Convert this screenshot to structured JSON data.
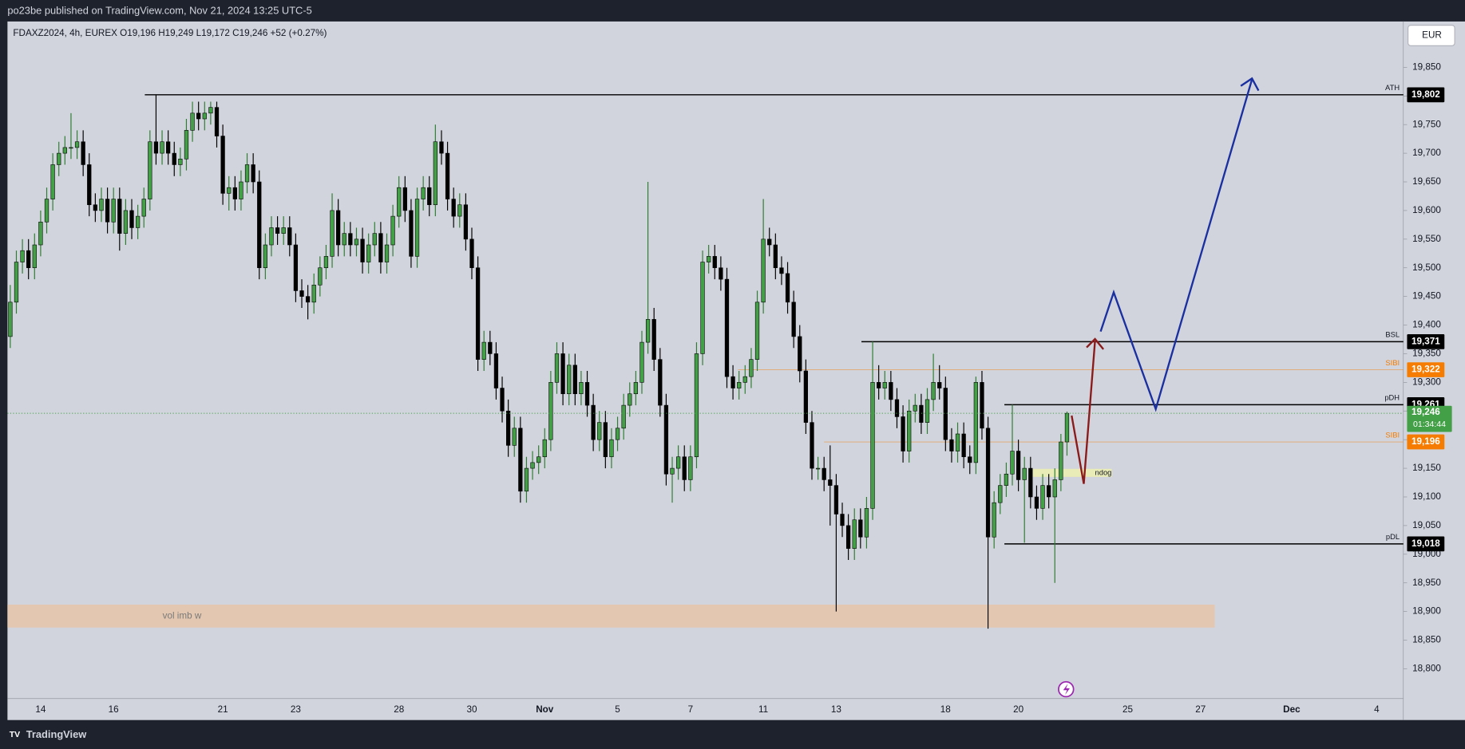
{
  "publisher": "po23be published on TradingView.com, Nov 21, 2024 13:25 UTC-5",
  "brand": "TradingView",
  "currency": "EUR",
  "chart_data": {
    "type": "candlestick",
    "title": "FDAXZ2024, 4h, EUREX  O19,196  H19,249  L19,172  C19,246  +52 (+0.27%)",
    "up_color": "#43a047",
    "down_color": "#000000",
    "ylim": [
      18748,
      19930
    ],
    "yticks": [
      {
        "value": 18800,
        "label": "18,800"
      },
      {
        "value": 18850,
        "label": "18,850"
      },
      {
        "value": 18900,
        "label": "18,900"
      },
      {
        "value": 18950,
        "label": "18,950"
      },
      {
        "value": 19000,
        "label": "19,000"
      },
      {
        "value": 19050,
        "label": "19,050"
      },
      {
        "value": 19100,
        "label": "19,100"
      },
      {
        "value": 19150,
        "label": "19,150"
      },
      {
        "value": 19200,
        "label": "19,200"
      },
      {
        "value": 19250,
        "label": "19,250"
      },
      {
        "value": 19300,
        "label": "19,300"
      },
      {
        "value": 19350,
        "label": "19,350"
      },
      {
        "value": 19400,
        "label": "19,400"
      },
      {
        "value": 19450,
        "label": "19,450"
      },
      {
        "value": 19500,
        "label": "19,500"
      },
      {
        "value": 19550,
        "label": "19,550"
      },
      {
        "value": 19600,
        "label": "19,600"
      },
      {
        "value": 19650,
        "label": "19,650"
      },
      {
        "value": 19700,
        "label": "19,700"
      },
      {
        "value": 19750,
        "label": "19,750"
      },
      {
        "value": 19800,
        "label": "19,800"
      },
      {
        "value": 19850,
        "label": "19,850"
      }
    ],
    "categories": [
      null,
      null,
      null,
      null,
      null,
      "14",
      null,
      null,
      null,
      null,
      null,
      null,
      null,
      null,
      null,
      null,
      null,
      "16",
      null,
      null,
      null,
      null,
      null,
      null,
      null,
      null,
      null,
      null,
      null,
      null,
      null,
      null,
      null,
      null,
      null,
      "21",
      null,
      null,
      null,
      null,
      null,
      null,
      null,
      null,
      null,
      null,
      null,
      "23",
      null,
      null,
      null,
      null,
      null,
      null,
      null,
      null,
      null,
      null,
      null,
      null,
      null,
      null,
      null,
      null,
      "28",
      null,
      null,
      null,
      null,
      null,
      null,
      null,
      null,
      null,
      null,
      null,
      "30",
      null,
      null,
      null,
      null,
      null,
      null,
      null,
      null,
      null,
      null,
      null,
      "Nov",
      null,
      null,
      null,
      null,
      null,
      null,
      null,
      null,
      null,
      null,
      null,
      "5",
      null,
      null,
      null,
      null,
      null,
      null,
      null,
      null,
      null,
      null,
      null,
      "7",
      null,
      null,
      null,
      null,
      null,
      null,
      null,
      null,
      null,
      null,
      null,
      "11",
      null,
      null,
      null,
      null,
      null,
      null,
      null,
      null,
      null,
      null,
      null,
      "13",
      null,
      null,
      null,
      null,
      null,
      null,
      null,
      null,
      null,
      null,
      null,
      null,
      null,
      null,
      null,
      null,
      null,
      "18",
      null,
      null,
      null,
      null,
      null,
      null,
      null,
      null,
      null,
      null,
      null,
      "20",
      null,
      null,
      null,
      null,
      null,
      null,
      null,
      null,
      null,
      null,
      null,
      null,
      null,
      null,
      null,
      null,
      null,
      "25",
      null,
      null,
      null,
      null,
      null,
      null,
      null,
      null,
      null,
      null,
      null,
      "27",
      null,
      null,
      null,
      null,
      null,
      null,
      null,
      null,
      null,
      null,
      null,
      null,
      null,
      null,
      "Dec",
      null,
      null,
      null,
      null,
      null,
      null,
      null,
      null,
      null,
      null,
      null,
      null,
      null,
      "4",
      null,
      null,
      null,
      null
    ],
    "ohlc": [
      [
        19380,
        19470,
        19360,
        19440
      ],
      [
        19440,
        19530,
        19420,
        19510
      ],
      [
        19510,
        19550,
        19490,
        19530
      ],
      [
        19530,
        19550,
        19480,
        19500
      ],
      [
        19500,
        19560,
        19480,
        19540
      ],
      [
        19540,
        19600,
        19520,
        19580
      ],
      [
        19580,
        19640,
        19560,
        19620
      ],
      [
        19620,
        19700,
        19600,
        19680
      ],
      [
        19680,
        19720,
        19660,
        19700
      ],
      [
        19700,
        19730,
        19680,
        19710
      ],
      [
        19710,
        19770,
        19690,
        19710
      ],
      [
        19710,
        19740,
        19690,
        19720
      ],
      [
        19720,
        19740,
        19660,
        19680
      ],
      [
        19680,
        19700,
        19590,
        19610
      ],
      [
        19610,
        19630,
        19580,
        19600
      ],
      [
        19600,
        19640,
        19580,
        19620
      ],
      [
        19620,
        19640,
        19560,
        19580
      ],
      [
        19580,
        19640,
        19560,
        19620
      ],
      [
        19620,
        19640,
        19530,
        19560
      ],
      [
        19560,
        19620,
        19540,
        19600
      ],
      [
        19600,
        19620,
        19550,
        19570
      ],
      [
        19570,
        19610,
        19550,
        19590
      ],
      [
        19590,
        19640,
        19570,
        19620
      ],
      [
        19620,
        19740,
        19600,
        19720
      ],
      [
        19720,
        19802,
        19680,
        19700
      ],
      [
        19700,
        19740,
        19680,
        19720
      ],
      [
        19720,
        19740,
        19680,
        19700
      ],
      [
        19700,
        19720,
        19660,
        19680
      ],
      [
        19680,
        19710,
        19660,
        19690
      ],
      [
        19690,
        19760,
        19670,
        19740
      ],
      [
        19740,
        19790,
        19720,
        19770
      ],
      [
        19770,
        19790,
        19740,
        19760
      ],
      [
        19760,
        19790,
        19740,
        19770
      ],
      [
        19770,
        19790,
        19750,
        19780
      ],
      [
        19780,
        19790,
        19710,
        19730
      ],
      [
        19730,
        19750,
        19610,
        19630
      ],
      [
        19630,
        19660,
        19600,
        19640
      ],
      [
        19640,
        19660,
        19600,
        19620
      ],
      [
        19620,
        19670,
        19600,
        19650
      ],
      [
        19650,
        19700,
        19630,
        19680
      ],
      [
        19680,
        19700,
        19630,
        19650
      ],
      [
        19650,
        19670,
        19480,
        19500
      ],
      [
        19500,
        19560,
        19480,
        19540
      ],
      [
        19540,
        19590,
        19520,
        19570
      ],
      [
        19570,
        19590,
        19540,
        19560
      ],
      [
        19560,
        19590,
        19540,
        19570
      ],
      [
        19570,
        19590,
        19520,
        19540
      ],
      [
        19540,
        19560,
        19440,
        19460
      ],
      [
        19460,
        19480,
        19430,
        19450
      ],
      [
        19450,
        19470,
        19410,
        19440
      ],
      [
        19440,
        19490,
        19420,
        19470
      ],
      [
        19470,
        19520,
        19450,
        19500
      ],
      [
        19500,
        19540,
        19480,
        19520
      ],
      [
        19520,
        19630,
        19500,
        19600
      ],
      [
        19600,
        19620,
        19520,
        19540
      ],
      [
        19540,
        19580,
        19520,
        19560
      ],
      [
        19560,
        19580,
        19520,
        19540
      ],
      [
        19540,
        19570,
        19520,
        19550
      ],
      [
        19550,
        19570,
        19490,
        19510
      ],
      [
        19510,
        19560,
        19490,
        19540
      ],
      [
        19540,
        19580,
        19520,
        19560
      ],
      [
        19560,
        19580,
        19490,
        19510
      ],
      [
        19510,
        19560,
        19490,
        19540
      ],
      [
        19540,
        19610,
        19520,
        19590
      ],
      [
        19590,
        19660,
        19570,
        19640
      ],
      [
        19640,
        19660,
        19580,
        19600
      ],
      [
        19600,
        19620,
        19500,
        19520
      ],
      [
        19520,
        19640,
        19500,
        19620
      ],
      [
        19620,
        19660,
        19600,
        19640
      ],
      [
        19640,
        19660,
        19590,
        19610
      ],
      [
        19610,
        19750,
        19590,
        19720
      ],
      [
        19720,
        19740,
        19680,
        19700
      ],
      [
        19700,
        19720,
        19600,
        19620
      ],
      [
        19620,
        19640,
        19570,
        19590
      ],
      [
        19590,
        19630,
        19570,
        19610
      ],
      [
        19610,
        19630,
        19530,
        19550
      ],
      [
        19550,
        19570,
        19480,
        19500
      ],
      [
        19500,
        19520,
        19320,
        19340
      ],
      [
        19340,
        19390,
        19320,
        19370
      ],
      [
        19370,
        19390,
        19330,
        19350
      ],
      [
        19350,
        19370,
        19270,
        19290
      ],
      [
        19290,
        19310,
        19230,
        19250
      ],
      [
        19250,
        19270,
        19170,
        19190
      ],
      [
        19190,
        19240,
        19170,
        19220
      ],
      [
        19220,
        19240,
        19090,
        19110
      ],
      [
        19110,
        19170,
        19090,
        19150
      ],
      [
        19150,
        19180,
        19130,
        19160
      ],
      [
        19160,
        19190,
        19140,
        19170
      ],
      [
        19170,
        19220,
        19150,
        19200
      ],
      [
        19200,
        19320,
        19180,
        19300
      ],
      [
        19300,
        19370,
        19280,
        19350
      ],
      [
        19350,
        19370,
        19260,
        19280
      ],
      [
        19280,
        19350,
        19260,
        19330
      ],
      [
        19330,
        19350,
        19260,
        19280
      ],
      [
        19280,
        19320,
        19260,
        19300
      ],
      [
        19300,
        19320,
        19240,
        19260
      ],
      [
        19260,
        19280,
        19180,
        19200
      ],
      [
        19200,
        19250,
        19180,
        19230
      ],
      [
        19230,
        19250,
        19150,
        19170
      ],
      [
        19170,
        19220,
        19150,
        19200
      ],
      [
        19200,
        19240,
        19180,
        19220
      ],
      [
        19220,
        19280,
        19200,
        19260
      ],
      [
        19260,
        19300,
        19240,
        19280
      ],
      [
        19280,
        19320,
        19260,
        19300
      ],
      [
        19300,
        19390,
        19280,
        19370
      ],
      [
        19370,
        19650,
        19350,
        19410
      ],
      [
        19410,
        19430,
        19320,
        19340
      ],
      [
        19340,
        19360,
        19240,
        19260
      ],
      [
        19260,
        19280,
        19120,
        19140
      ],
      [
        19140,
        19170,
        19090,
        19150
      ],
      [
        19150,
        19190,
        19130,
        19170
      ],
      [
        19170,
        19190,
        19110,
        19130
      ],
      [
        19130,
        19190,
        19110,
        19170
      ],
      [
        19170,
        19370,
        19150,
        19350
      ],
      [
        19350,
        19530,
        19330,
        19510
      ],
      [
        19510,
        19540,
        19490,
        19520
      ],
      [
        19520,
        19540,
        19480,
        19500
      ],
      [
        19500,
        19520,
        19460,
        19480
      ],
      [
        19480,
        19500,
        19290,
        19310
      ],
      [
        19310,
        19330,
        19270,
        19290
      ],
      [
        19290,
        19320,
        19270,
        19300
      ],
      [
        19300,
        19330,
        19280,
        19310
      ],
      [
        19310,
        19360,
        19290,
        19340
      ],
      [
        19340,
        19460,
        19320,
        19440
      ],
      [
        19440,
        19620,
        19420,
        19550
      ],
      [
        19550,
        19570,
        19520,
        19540
      ],
      [
        19540,
        19560,
        19480,
        19500
      ],
      [
        19500,
        19520,
        19470,
        19490
      ],
      [
        19490,
        19510,
        19420,
        19440
      ],
      [
        19440,
        19460,
        19360,
        19380
      ],
      [
        19380,
        19400,
        19300,
        19320
      ],
      [
        19320,
        19340,
        19210,
        19230
      ],
      [
        19230,
        19250,
        19130,
        19150
      ],
      [
        19150,
        19170,
        19130,
        19150
      ],
      [
        19150,
        19170,
        19110,
        19130
      ],
      [
        19130,
        19190,
        19050,
        19120
      ],
      [
        19120,
        19140,
        18900,
        19070
      ],
      [
        19070,
        19090,
        19030,
        19050
      ],
      [
        19050,
        19070,
        18990,
        19010
      ],
      [
        19010,
        19080,
        18990,
        19060
      ],
      [
        19060,
        19080,
        19010,
        19030
      ],
      [
        19030,
        19100,
        19010,
        19080
      ],
      [
        19080,
        19371,
        19060,
        19300
      ],
      [
        19300,
        19330,
        19270,
        19290
      ],
      [
        19290,
        19320,
        19270,
        19300
      ],
      [
        19300,
        19320,
        19250,
        19270
      ],
      [
        19270,
        19290,
        19220,
        19240
      ],
      [
        19240,
        19260,
        19160,
        19180
      ],
      [
        19180,
        19270,
        19160,
        19250
      ],
      [
        19250,
        19280,
        19230,
        19260
      ],
      [
        19260,
        19280,
        19210,
        19230
      ],
      [
        19230,
        19290,
        19210,
        19270
      ],
      [
        19270,
        19350,
        19250,
        19300
      ],
      [
        19300,
        19330,
        19270,
        19290
      ],
      [
        19290,
        19310,
        19180,
        19200
      ],
      [
        19200,
        19220,
        19160,
        19180
      ],
      [
        19180,
        19230,
        19160,
        19210
      ],
      [
        19210,
        19230,
        19150,
        19170
      ],
      [
        19170,
        19190,
        19140,
        19160
      ],
      [
        19160,
        19310,
        19140,
        19300
      ],
      [
        19300,
        19320,
        19200,
        19220
      ],
      [
        19220,
        19240,
        18870,
        19030
      ],
      [
        19030,
        19110,
        19010,
        19090
      ],
      [
        19090,
        19140,
        19070,
        19120
      ],
      [
        19120,
        19160,
        19100,
        19140
      ],
      [
        19140,
        19261,
        19120,
        19180
      ],
      [
        19180,
        19200,
        19110,
        19130
      ],
      [
        19130,
        19170,
        19020,
        19150
      ],
      [
        19150,
        19170,
        19080,
        19100
      ],
      [
        19100,
        19120,
        19060,
        19080
      ],
      [
        19080,
        19140,
        19060,
        19120
      ],
      [
        19120,
        19140,
        19080,
        19100
      ],
      [
        19100,
        19150,
        18950,
        19130
      ],
      [
        19130,
        19210,
        19110,
        19196
      ],
      [
        19196,
        19249,
        19172,
        19246
      ],
      null,
      null,
      null,
      null,
      null,
      null,
      null,
      null,
      null,
      null,
      null,
      null,
      null,
      null,
      null,
      null,
      null,
      null,
      null,
      null,
      null,
      null,
      null,
      null,
      null,
      null,
      null,
      null,
      null,
      null,
      null,
      null,
      null,
      null,
      null,
      null,
      null,
      null,
      null,
      null,
      null,
      null,
      null,
      null,
      null,
      null,
      null,
      null,
      null,
      null,
      null,
      null,
      null,
      null,
      null
    ],
    "levels": [
      {
        "name": "ATH",
        "price": {
          "value": 19802,
          "label": "19,802"
        },
        "color": "#000000"
      },
      {
        "name": "BSL",
        "price": {
          "value": 19371,
          "label": "19,371"
        },
        "color": "#000000"
      },
      {
        "name": "SIBI",
        "price": {
          "value": 19322,
          "label": "19,322"
        },
        "color": "#f57c00"
      },
      {
        "name": "pDH",
        "price": {
          "value": 19261,
          "label": "19,261"
        },
        "color": "#000000"
      },
      {
        "name": "SIBI",
        "price": {
          "value": 19196,
          "label": "19,196"
        },
        "color": "#f57c00"
      },
      {
        "name": "pDL",
        "price": {
          "value": 19018,
          "label": "19,018"
        },
        "color": "#000000"
      }
    ],
    "last_price": {
      "value": 19246,
      "label": "19,246"
    },
    "countdown": "01:34:44",
    "last_color": "#43a047",
    "zones": [
      {
        "label": "vol imb w",
        "top": 18912,
        "bottom": 18872,
        "color": "#e8c4a8"
      },
      {
        "label": "ndog",
        "top": 19149,
        "bottom": 19135,
        "color": "#eef0b0"
      }
    ]
  }
}
